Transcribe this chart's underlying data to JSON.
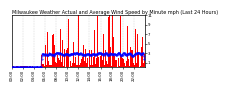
{
  "title": "Milwaukee Weather Actual and Average Wind Speed by Minute mph (Last 24 Hours)",
  "background_color": "#ffffff",
  "plot_background": "#ffffff",
  "bar_color": "#ff0000",
  "avg_color": "#0000ff",
  "ylim": [
    0,
    11
  ],
  "yticks": [
    1,
    3,
    5,
    7,
    9,
    11
  ],
  "n_points": 1440,
  "grid_color": "#bbbbbb",
  "title_fontsize": 3.5,
  "tick_fontsize": 2.8,
  "grid_interval": 120
}
